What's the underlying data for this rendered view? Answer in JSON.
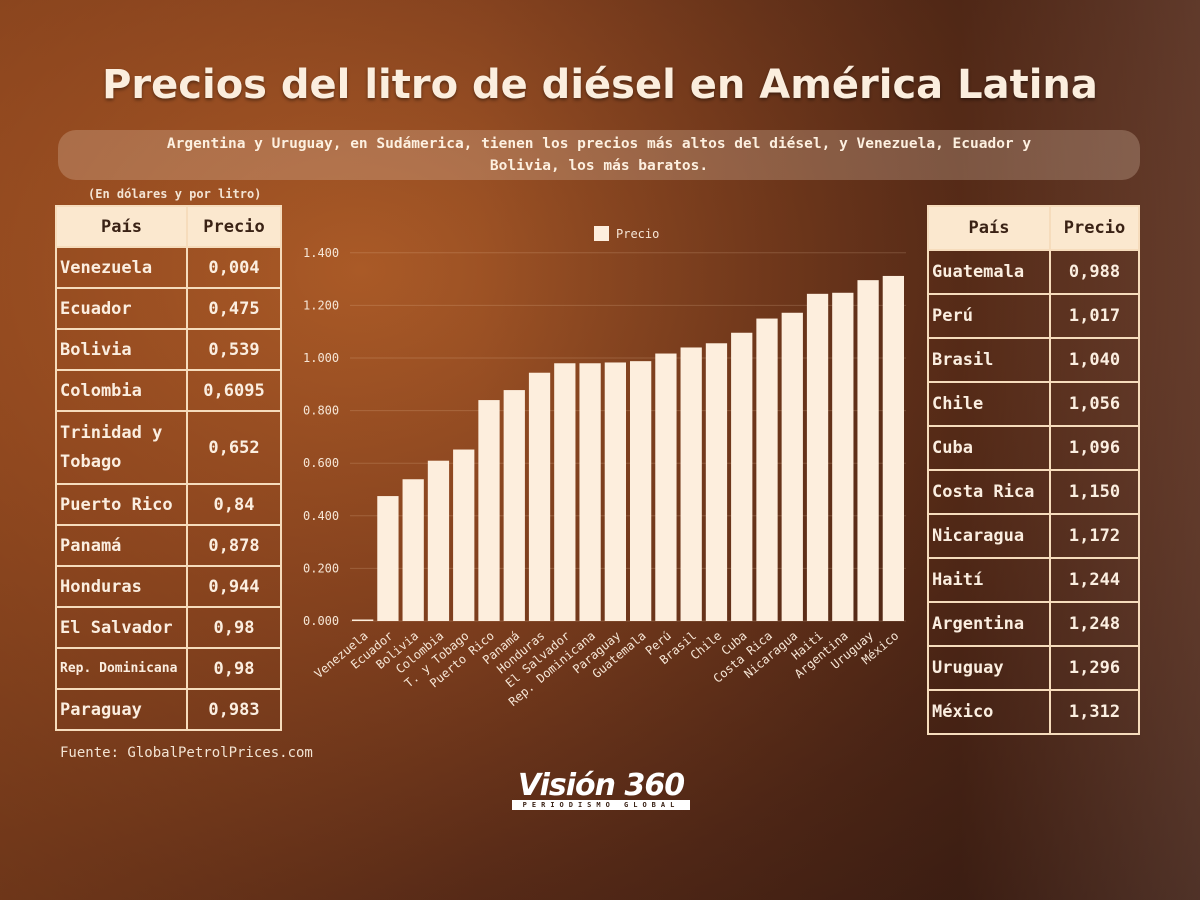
{
  "title": "Precios del litro de diésel en América Latina",
  "subtitle_line1": "Argentina y Uruguay, en Sudámerica, tienen los precios más altos del diésel, y Venezuela, Ecuador y",
  "subtitle_line2": "Bolivia, los más baratos.",
  "unit_note": "(En dólares y por litro)",
  "table_headers": {
    "country": "País",
    "price": "Precio"
  },
  "left_table": [
    {
      "country": "Venezuela",
      "price": "0,004"
    },
    {
      "country": "Ecuador",
      "price": "0,475"
    },
    {
      "country": "Bolivia",
      "price": "0,539"
    },
    {
      "country": "Colombia",
      "price": "0,6095"
    },
    {
      "country": "Trinidad y Tobago",
      "price": "0,652"
    },
    {
      "country": "Puerto Rico",
      "price": "0,84"
    },
    {
      "country": "Panamá",
      "price": "0,878"
    },
    {
      "country": "Honduras",
      "price": "0,944"
    },
    {
      "country": "El Salvador",
      "price": "0,98"
    },
    {
      "country": "Rep. Dominicana",
      "price": "0,98"
    },
    {
      "country": "Paraguay",
      "price": "0,983"
    }
  ],
  "right_table": [
    {
      "country": "Guatemala",
      "price": "0,988"
    },
    {
      "country": "Perú",
      "price": "1,017"
    },
    {
      "country": "Brasil",
      "price": "1,040"
    },
    {
      "country": "Chile",
      "price": "1,056"
    },
    {
      "country": "Cuba",
      "price": "1,096"
    },
    {
      "country": "Costa Rica",
      "price": "1,150"
    },
    {
      "country": "Nicaragua",
      "price": "1,172"
    },
    {
      "country": "Haití",
      "price": "1,244"
    },
    {
      "country": "Argentina",
      "price": "1,248"
    },
    {
      "country": "Uruguay",
      "price": "1,296"
    },
    {
      "country": "México",
      "price": "1,312"
    }
  ],
  "source": "Fuente: GlobalPetrolPrices.com",
  "logo": {
    "name": "Visión 360",
    "tagline": "PERIODISMO GLOBAL"
  },
  "colors": {
    "bar": "#fdeedd",
    "table_header": "#fbe8cf"
  },
  "chart_data": {
    "type": "bar",
    "legend": "Precio",
    "legend_position": "top-center",
    "categories": [
      "Venezuela",
      "Ecuador",
      "Bolivia",
      "Colombia",
      "T. y Tobago",
      "Puerto Rico",
      "Panamá",
      "Honduras",
      "El Salvador",
      "Rep. Dominicana",
      "Paraguay",
      "Guatemala",
      "Perú",
      "Brasil",
      "Chile",
      "Cuba",
      "Costa Rica",
      "Nicaragua",
      "Haiti",
      "Argentina",
      "Uruguay",
      "México"
    ],
    "values": [
      0.004,
      0.475,
      0.539,
      0.6095,
      0.652,
      0.84,
      0.878,
      0.944,
      0.98,
      0.98,
      0.983,
      0.988,
      1.017,
      1.04,
      1.056,
      1.096,
      1.15,
      1.172,
      1.244,
      1.248,
      1.296,
      1.312
    ],
    "yticks": [
      "0.000",
      "0.200",
      "0.400",
      "0.600",
      "0.800",
      "1.000",
      "1.200",
      "1.400"
    ],
    "ylim": [
      0,
      1.4
    ],
    "grid": true
  }
}
